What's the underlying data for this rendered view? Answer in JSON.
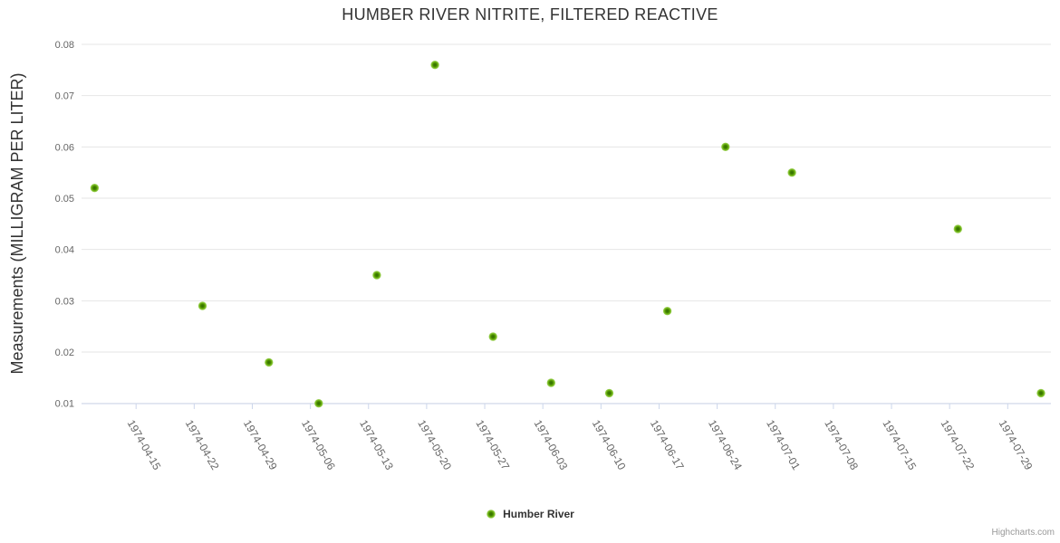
{
  "chart_data": {
    "type": "scatter",
    "title": "HUMBER RIVER NITRITE, FILTERED REACTIVE",
    "xlabel": "",
    "ylabel": "Measurements (MILLIGRAM PER LITER)",
    "ylim": [
      0.01,
      0.08
    ],
    "y_tick_step": 0.01,
    "y_tick_labels": [
      "0.01",
      "0.02",
      "0.03",
      "0.04",
      "0.05",
      "0.06",
      "0.07",
      "0.08"
    ],
    "x_axis_type": "datetime",
    "x_tick_interval": "1 week",
    "x_ticks": [
      "1974-04-15",
      "1974-04-22",
      "1974-04-29",
      "1974-05-06",
      "1974-05-13",
      "1974-05-20",
      "1974-05-27",
      "1974-06-03",
      "1974-06-10",
      "1974-06-17",
      "1974-06-24",
      "1974-07-01",
      "1974-07-08",
      "1974-07-15",
      "1974-07-22",
      "1974-07-29"
    ],
    "grid": "horizontal",
    "legend_position": "bottom-center",
    "series": [
      {
        "name": "Humber River",
        "marker": "circle",
        "color": "#5d9c00",
        "points": [
          {
            "date": "1974-04-10",
            "value": 0.052
          },
          {
            "date": "1974-04-23",
            "value": 0.029
          },
          {
            "date": "1974-05-01",
            "value": 0.018
          },
          {
            "date": "1974-05-07",
            "value": 0.01
          },
          {
            "date": "1974-05-14",
            "value": 0.035
          },
          {
            "date": "1974-05-21",
            "value": 0.076
          },
          {
            "date": "1974-05-28",
            "value": 0.023
          },
          {
            "date": "1974-06-04",
            "value": 0.014
          },
          {
            "date": "1974-06-11",
            "value": 0.012
          },
          {
            "date": "1974-06-18",
            "value": 0.028
          },
          {
            "date": "1974-06-25",
            "value": 0.06
          },
          {
            "date": "1974-07-03",
            "value": 0.055
          },
          {
            "date": "1974-07-23",
            "value": 0.044
          },
          {
            "date": "1974-08-02",
            "value": 0.012
          }
        ]
      }
    ]
  },
  "legend": {
    "label": "Humber River"
  },
  "credits": {
    "label": "Highcharts.com"
  },
  "colors": {
    "title_text": "#333333",
    "axis_label_text": "#666666",
    "grid_line": "#e6e6e6",
    "axis_line": "#ccd6eb",
    "marker_center": "#2e6e00",
    "marker_mid": "#559600",
    "marker_edge": "#8cc83e",
    "credits_text": "#999999",
    "background": "#ffffff"
  }
}
